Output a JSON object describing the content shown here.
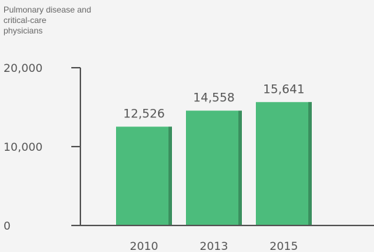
{
  "chart_data": {
    "type": "bar",
    "ylabel_lines": [
      "Pulmonary disease and",
      "critical-care",
      "physicians"
    ],
    "categories": [
      "2010",
      "2013",
      "2015"
    ],
    "values": [
      12526,
      14558,
      15641
    ],
    "value_labels": [
      "12,526",
      "14,558",
      "15,641"
    ],
    "ylim": [
      0,
      20000
    ],
    "yticks": [
      0,
      10000,
      20000
    ],
    "ytick_labels": [
      "0",
      "10,000",
      "20,000"
    ],
    "grid": false,
    "legend": "none",
    "colors": {
      "bar": "#4cbc7c",
      "bar_shadow": "#3a8f5e",
      "axis": "#555555",
      "background": "#f4f4f4"
    }
  }
}
